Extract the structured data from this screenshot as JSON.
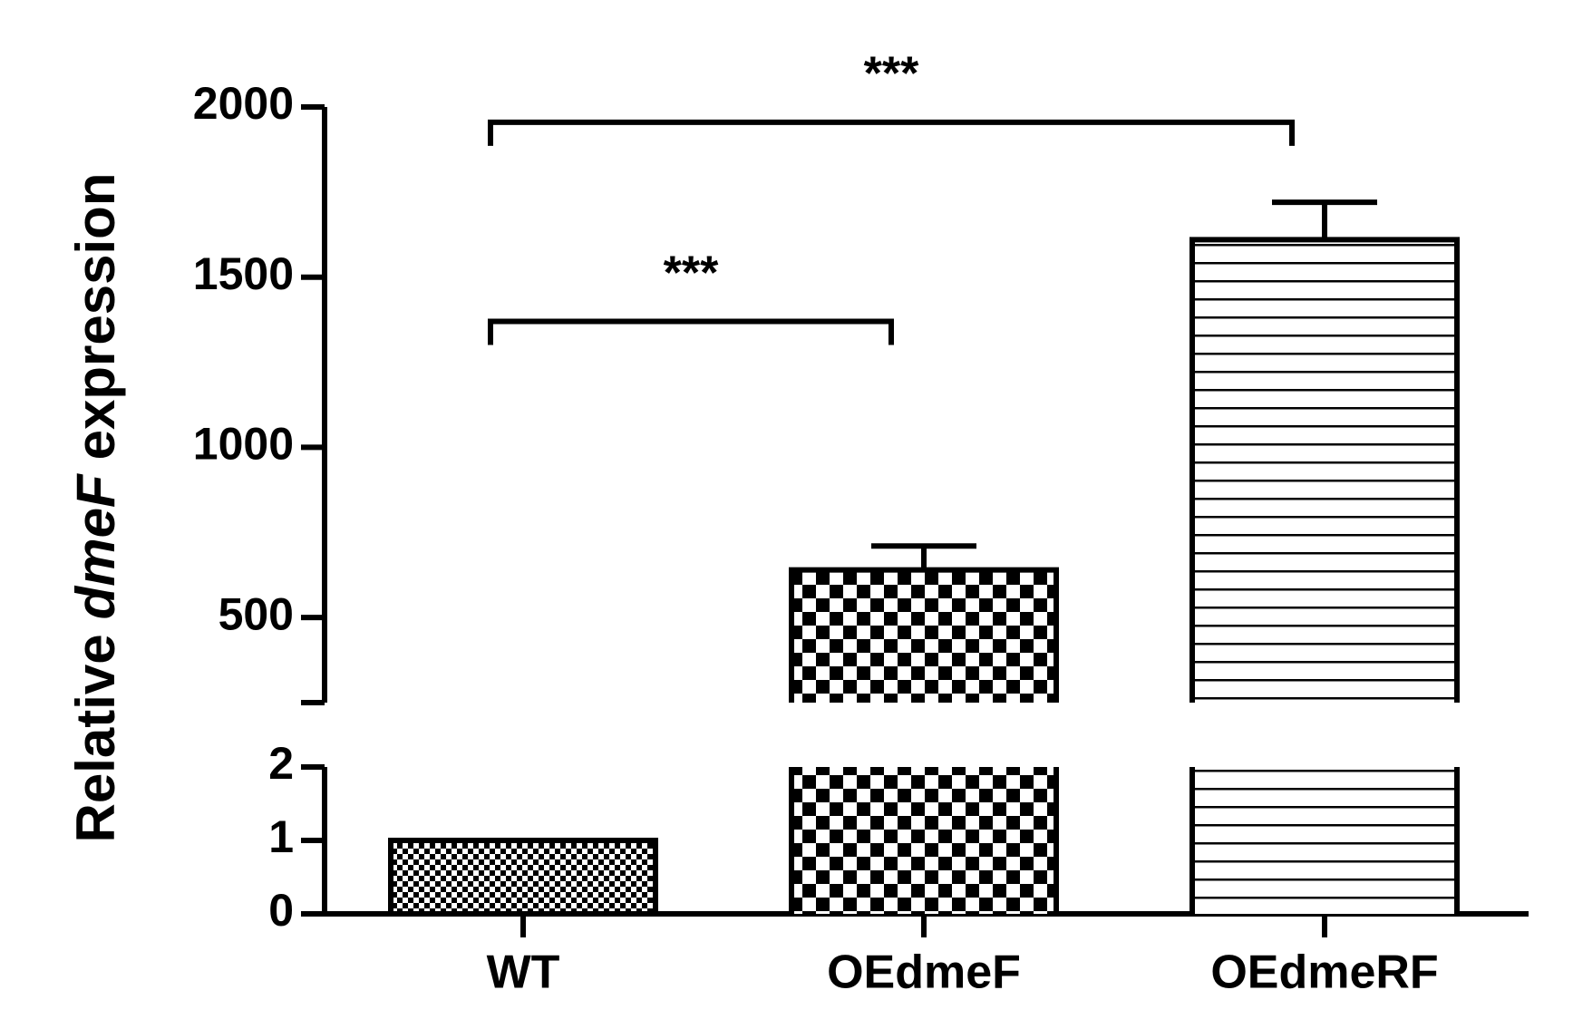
{
  "chart_data": {
    "type": "bar",
    "categories": [
      "WT",
      "OEdmeF",
      "OEdmeRF"
    ],
    "values": [
      1,
      640,
      1610
    ],
    "errors": [
      null,
      70,
      110
    ],
    "color": "#000000",
    "y_label": [
      "Relative",
      "dmeF",
      "expression"
    ],
    "ylim_lower": [
      0,
      2
    ],
    "yticks_lower": [
      0,
      1,
      2
    ],
    "ylim_upper": [
      250,
      2000
    ],
    "yticks_upper": [
      500,
      1000,
      1500,
      2000
    ],
    "annotations": [
      {
        "text": "***",
        "from": 0,
        "to": 1,
        "y": 1370
      },
      {
        "text": "***",
        "from": 0,
        "to": 2,
        "y": 1955
      }
    ]
  }
}
